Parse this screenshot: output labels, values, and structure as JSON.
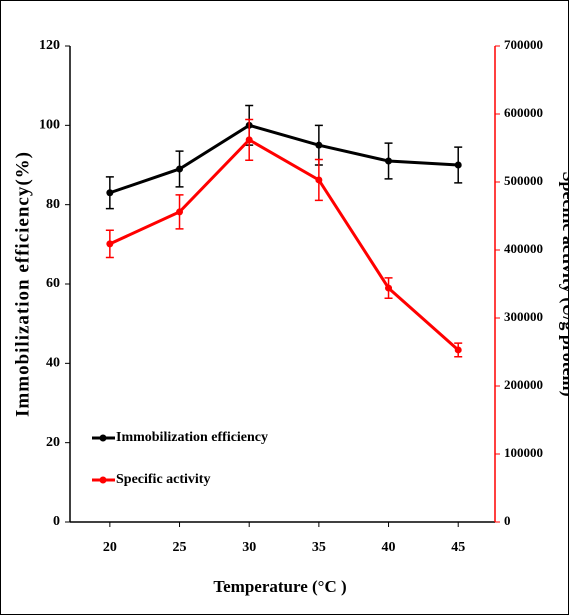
{
  "chart_data": {
    "type": "line",
    "x_label": "Temperature (°C )",
    "y_label": "Immobilization efficiency(%)",
    "y2_label": "Specific activity (U/g protein)",
    "x": [
      20,
      25,
      30,
      35,
      40,
      45
    ],
    "xlim": [
      17.14,
      47.64
    ],
    "xticks": [
      20,
      25,
      30,
      35,
      40,
      45
    ],
    "ylim": [
      0,
      120
    ],
    "yticks": [
      0,
      20,
      40,
      60,
      80,
      100,
      120
    ],
    "y2lim": [
      0,
      700000
    ],
    "y2ticks": [
      0,
      100000,
      200000,
      300000,
      400000,
      500000,
      600000,
      700000
    ],
    "legend": "lower left",
    "series": [
      {
        "name": "Immobilization efficiency",
        "color": "#000000",
        "values": [
          83,
          89,
          100,
          95,
          91,
          90
        ],
        "errors": [
          4,
          4.5,
          5,
          5,
          4.5,
          4.5
        ]
      },
      {
        "name": "Specific activity",
        "color": "#ff0000",
        "axis": "y2",
        "values": [
          409000,
          456000,
          562000,
          503000,
          344000,
          253000
        ],
        "errors": [
          20000,
          25000,
          30000,
          30000,
          15000,
          10000
        ]
      }
    ]
  }
}
